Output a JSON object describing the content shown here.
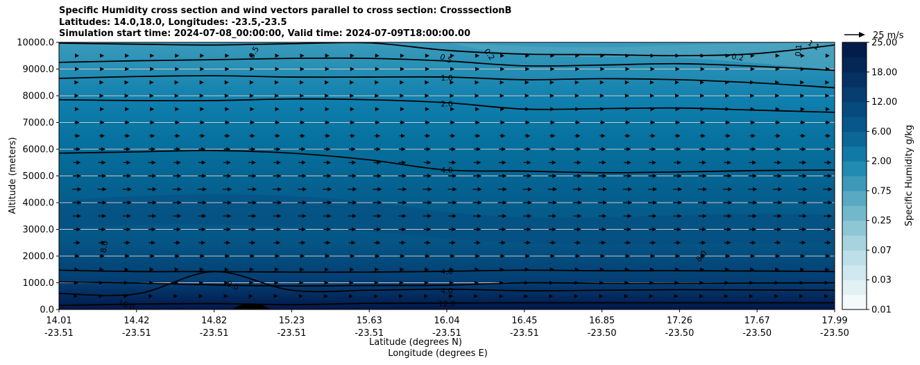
{
  "title_lines": [
    "Specific Humidity cross section and wind vectors parallel to cross section: CrosssectionB",
    "Latitudes: 14.0,18.0, Longitudes: -23.5,-23.5",
    "Simulation start time: 2024-07-08_00:00:00, Valid time: 2024-07-09T18:00:00.00"
  ],
  "chart_data": {
    "type": "contour",
    "title": "Specific Humidity cross section and wind vectors parallel to cross section: CrosssectionB",
    "ylabel": "Altitude (meters)",
    "xlabel_lines": [
      "Latitude (degrees N)",
      "Longitude (degrees E)"
    ],
    "ylim": [
      0,
      10000
    ],
    "y_ticks": [
      0,
      1000,
      2000,
      3000,
      4000,
      5000,
      6000,
      7000,
      8000,
      9000,
      10000
    ],
    "y_tick_labels": [
      "0.0",
      "1000.0",
      "2000.0",
      "3000.0",
      "4000.0",
      "5000.0",
      "6000.0",
      "7000.0",
      "8000.0",
      "9000.0",
      "10000.0"
    ],
    "x_ticks": [
      {
        "lat": "14.01",
        "lon": "-23.51"
      },
      {
        "lat": "14.42",
        "lon": "-23.51"
      },
      {
        "lat": "14.82",
        "lon": "-23.51"
      },
      {
        "lat": "15.23",
        "lon": "-23.51"
      },
      {
        "lat": "15.63",
        "lon": "-23.51"
      },
      {
        "lat": "16.04",
        "lon": "-23.51"
      },
      {
        "lat": "16.45",
        "lon": "-23.51"
      },
      {
        "lat": "16.85",
        "lon": "-23.50"
      },
      {
        "lat": "17.26",
        "lon": "-23.50"
      },
      {
        "lat": "17.67",
        "lon": "-23.50"
      },
      {
        "lat": "17.99",
        "lon": "-23.50"
      }
    ],
    "contour_lines": [
      {
        "level": "0.2",
        "y_values": [
          9970,
          9930,
          9900,
          9950,
          9980,
          9700,
          9560,
          9540,
          9500,
          9580,
          9900
        ]
      },
      {
        "level": "0.5",
        "y_values": [
          9250,
          9310,
          9350,
          9400,
          9400,
          9300,
          9120,
          9150,
          9200,
          9100,
          8950
        ]
      },
      {
        "level": "1.0",
        "y_values": [
          8650,
          8720,
          8750,
          8700,
          8700,
          8700,
          8600,
          8640,
          8600,
          8480,
          8300
        ]
      },
      {
        "level": "2.0",
        "y_values": [
          7850,
          7820,
          7820,
          7880,
          7850,
          7740,
          7500,
          7520,
          7540,
          7460,
          7380
        ]
      },
      {
        "level": "4.0",
        "y_values": [
          5850,
          5900,
          5950,
          5850,
          5600,
          5220,
          5180,
          5120,
          5150,
          5200,
          5220
        ]
      },
      {
        "level": "4.0",
        "y_values": [
          1470,
          1420,
          1420,
          1400,
          1400,
          1430,
          1470,
          1450,
          1450,
          1440,
          1420
        ]
      },
      {
        "level": "4.0",
        "y_values": [
          1030,
          990,
          920,
          880,
          900,
          910,
          1000,
          980,
          980,
          990,
          1000
        ]
      },
      {
        "level": "8.0",
        "y_values": [
          600,
          580,
          1420,
          720,
          720,
          760,
          700,
          720,
          740,
          730,
          720
        ]
      },
      {
        "level": "12.0",
        "y_values": [
          150,
          200,
          220,
          180,
          230,
          240,
          250,
          250,
          250,
          250,
          250
        ]
      }
    ],
    "contour_labels": [
      {
        "text": "0.5",
        "x_frac": 0.251,
        "y": 9630,
        "angle": -62
      },
      {
        "text": "0.5",
        "x_frac": 0.499,
        "y": 9400,
        "angle": 22
      },
      {
        "text": "0.2",
        "x_frac": 0.555,
        "y": 9550,
        "angle": 55
      },
      {
        "text": "0.2",
        "x_frac": 0.875,
        "y": 9450,
        "angle": 8
      },
      {
        "text": "0.1",
        "x_frac": 0.953,
        "y": 9700,
        "angle": -85
      },
      {
        "text": "1.1",
        "x_frac": 0.973,
        "y": 9900,
        "angle": 30
      },
      {
        "text": "1.0",
        "x_frac": 0.5,
        "y": 8680,
        "angle": 0
      },
      {
        "text": "2.0",
        "x_frac": 0.5,
        "y": 7700,
        "angle": 0
      },
      {
        "text": "4.0",
        "x_frac": 0.5,
        "y": 5220,
        "angle": 0
      },
      {
        "text": "8.0",
        "x_frac": 0.058,
        "y": 2350,
        "angle": -80
      },
      {
        "text": "8.0",
        "x_frac": 0.828,
        "y": 2000,
        "angle": -50
      },
      {
        "text": "4.0",
        "x_frac": 0.5,
        "y": 1430,
        "angle": 0
      },
      {
        "text": "8.0",
        "x_frac": 0.224,
        "y": 900,
        "angle": 22
      },
      {
        "text": "4.0",
        "x_frac": 0.5,
        "y": 700,
        "angle": 0
      },
      {
        "text": "16.0",
        "x_frac": 0.087,
        "y": 180,
        "angle": 22
      },
      {
        "text": "12.0",
        "x_frac": 0.5,
        "y": 220,
        "angle": 0
      }
    ],
    "wind_quiver": {
      "direction": "parallel to cross section, toward increasing latitude",
      "reference_speed_ms": 25,
      "reference_label": "25 m/s",
      "rows": [
        {
          "altitude": 9500,
          "speed": 5
        },
        {
          "altitude": 9000,
          "speed": 5
        },
        {
          "altitude": 8500,
          "speed": 4
        },
        {
          "altitude": 8000,
          "speed": 4
        },
        {
          "altitude": 7500,
          "speed": 5
        },
        {
          "altitude": 7000,
          "speed": 6
        },
        {
          "altitude": 6500,
          "speed": 7
        },
        {
          "altitude": 6000,
          "speed": 8
        },
        {
          "altitude": 5500,
          "speed": 9
        },
        {
          "altitude": 5000,
          "speed": 10
        },
        {
          "altitude": 4500,
          "speed": 11
        },
        {
          "altitude": 4000,
          "speed": 11
        },
        {
          "altitude": 3500,
          "speed": 10
        },
        {
          "altitude": 3000,
          "speed": 9
        },
        {
          "altitude": 2500,
          "speed": 8
        },
        {
          "altitude": 2000,
          "speed": 6
        },
        {
          "altitude": 1500,
          "speed": 4
        },
        {
          "altitude": 1000,
          "speed": 3
        },
        {
          "altitude": 500,
          "speed": 2
        }
      ]
    },
    "colorbar": {
      "label": "Specific Humidity g/kg",
      "tick_labels": [
        "0.01",
        "0.03",
        "0.07",
        "0.25",
        "0.75",
        "2.00",
        "6.00",
        "12.00",
        "18.00",
        "25.00"
      ],
      "colors": [
        "#f4fafb",
        "#e2f1f4",
        "#cfe7ee",
        "#bcdfe8",
        "#a6d3de",
        "#8ec6d5",
        "#73b7cb",
        "#58a9c1",
        "#3c9ab8",
        "#228bb0",
        "#1079a5",
        "#0a6797",
        "#08568a",
        "#074a7d",
        "#063e70",
        "#053163",
        "#042756",
        "#031d4a"
      ]
    },
    "terrain_label": ""
  }
}
